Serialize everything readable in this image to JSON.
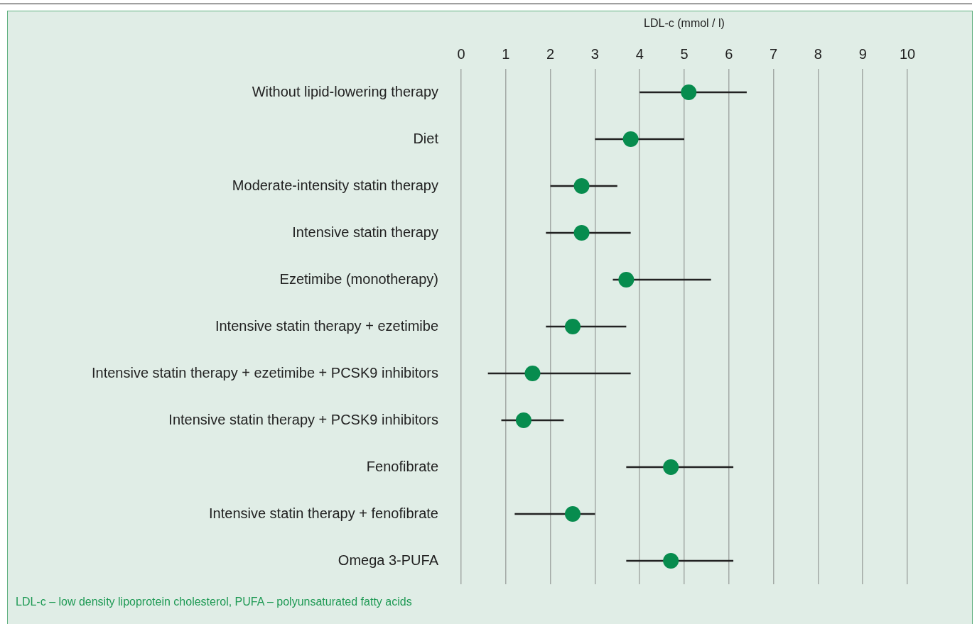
{
  "chart_data": {
    "type": "scatter",
    "orientation": "horizontal",
    "xlabel": "LDL-c (mmol / l)",
    "categories": [
      "Without lipid-lowering therapy",
      "Diet",
      "Moderate-intensity statin therapy",
      "Intensive statin therapy",
      "Ezetimibe (monotherapy)",
      "Intensive statin therapy + ezetimibe",
      "Intensive statin therapy + ezetimibe + PCSK9 inhibitors",
      "Intensive statin therapy + PCSK9 inhibitors",
      "Fenofibrate",
      "Intensive statin therapy + fenofibrate",
      "Omega 3-PUFA"
    ],
    "values": [
      5.1,
      3.8,
      2.7,
      2.7,
      3.7,
      2.5,
      1.6,
      1.4,
      4.7,
      2.5,
      4.7
    ],
    "errors": [
      [
        4.0,
        6.4
      ],
      [
        3.0,
        5.0
      ],
      [
        2.0,
        3.5
      ],
      [
        1.9,
        3.8
      ],
      [
        3.4,
        5.6
      ],
      [
        1.9,
        3.7
      ],
      [
        0.6,
        3.8
      ],
      [
        0.9,
        2.3
      ],
      [
        3.7,
        6.1
      ],
      [
        1.2,
        3.0
      ],
      [
        3.7,
        6.1
      ]
    ],
    "color": "#078c4e",
    "marker": "circle",
    "xlim": [
      0,
      10
    ],
    "xticks": [
      0,
      1,
      2,
      3,
      4,
      5,
      6,
      7,
      8,
      9,
      10
    ],
    "grid": "x",
    "annotations": [
      "LDL-c – low density lipoprotein cholesterol, PUFA – polyunsaturated fatty acids"
    ]
  }
}
